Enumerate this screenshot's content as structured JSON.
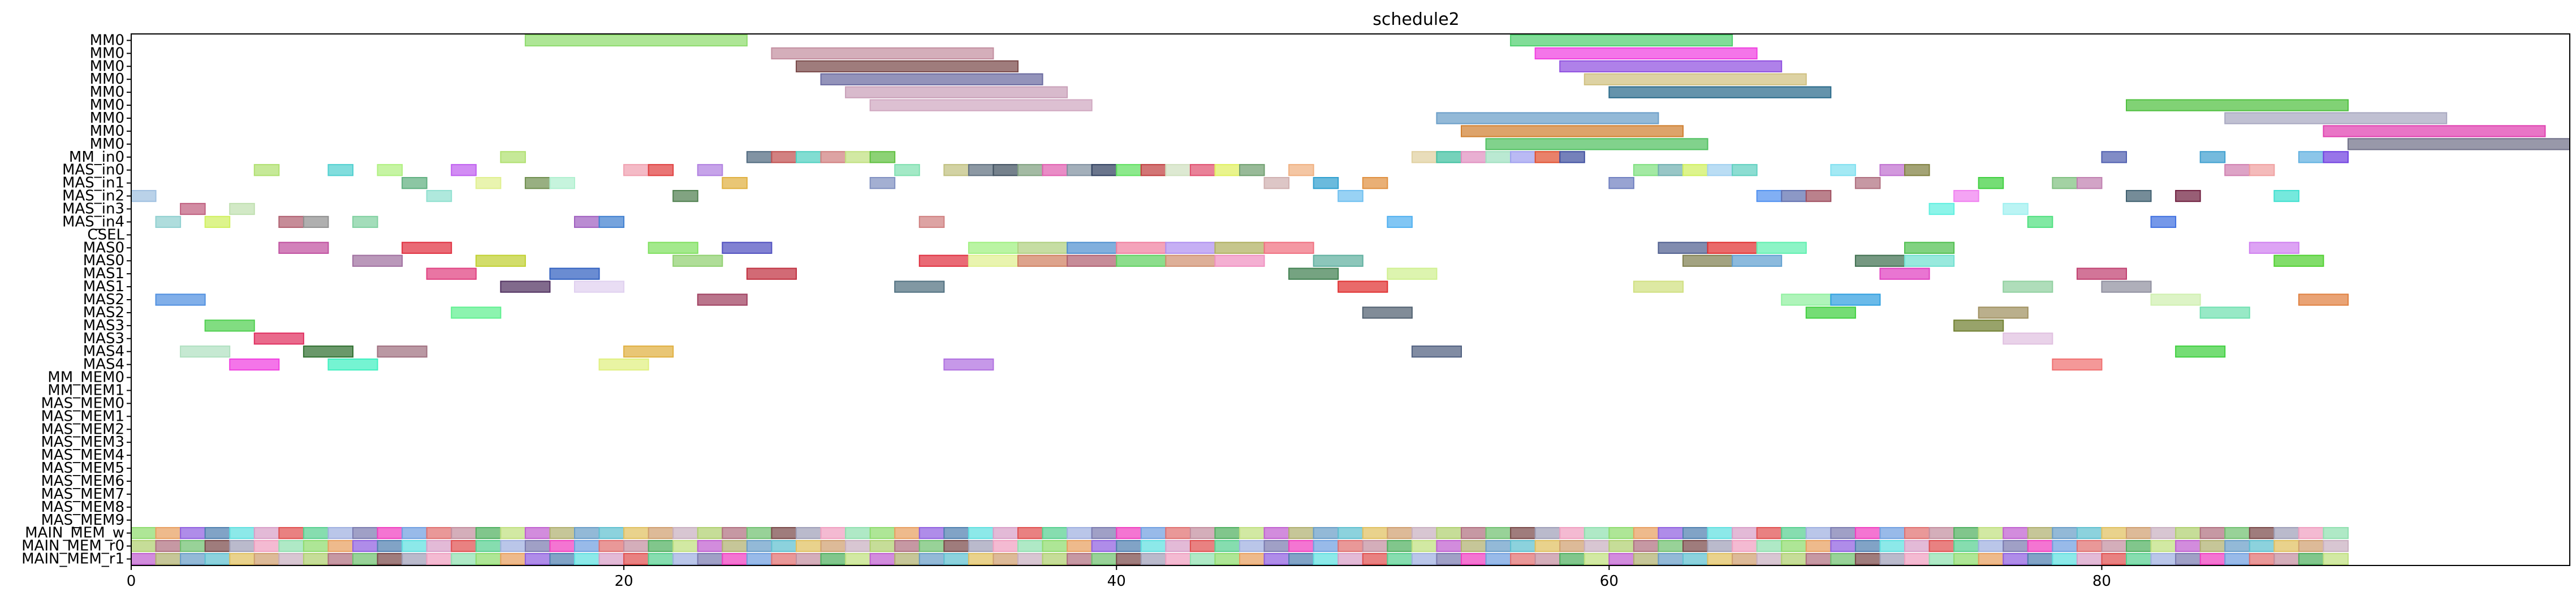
{
  "chart_data": {
    "type": "gantt",
    "title": "schedule2",
    "xlim": [
      0,
      99
    ],
    "x_ticks": [
      0,
      20,
      40,
      60,
      80
    ],
    "grid": false,
    "rows": [
      "MM0",
      "MM0",
      "MM0",
      "MM0",
      "MM0",
      "MM0",
      "MM0",
      "MM0",
      "MM0",
      "MM_in0",
      "MAS_in0",
      "MAS_in1",
      "MAS_in2",
      "MAS_in3",
      "MAS_in4",
      "CSEL",
      "MAS0",
      "MAS0",
      "MAS1",
      "MAS1",
      "MAS2",
      "MAS2",
      "MAS3",
      "MAS3",
      "MAS4",
      "MAS4",
      "MM_MEM0",
      "MM_MEM1",
      "MAS_MEM0",
      "MAS_MEM1",
      "MAS_MEM2",
      "MAS_MEM3",
      "MAS_MEM4",
      "MAS_MEM5",
      "MAS_MEM6",
      "MAS_MEM7",
      "MAS_MEM8",
      "MAS_MEM9",
      "MAIN_MEM_w",
      "MAIN_MEM_r0",
      "MAIN_MEM_r1"
    ],
    "palette": [
      "#8fdc6e",
      "#c38fa0",
      "#7a4a4a",
      "#7b7bb0",
      "#c9b0c0",
      "#d8a0c8",
      "#6a9ec8",
      "#e8a060",
      "#50b060",
      "#a0a0b8",
      "#f040c0",
      "#b0d070",
      "#e05050",
      "#60c0d0",
      "#9060e0",
      "#c0e080",
      "#f0a0c0",
      "#70a0e0",
      "#b07080",
      "#58d090",
      "#e0c060",
      "#5080b0",
      "#c060d0",
      "#90e0b0",
      "#e07070",
      "#70c070",
      "#a0b0e0",
      "#d0a070",
      "#60e0e0",
      "#b0b070"
    ],
    "bars": [
      {
        "row": 0,
        "start": 16,
        "end": 25,
        "color": "#8fdc6e"
      },
      {
        "row": 0,
        "start": 56,
        "end": 65,
        "color": "#50d070"
      },
      {
        "row": 1,
        "start": 26,
        "end": 35,
        "color": "#c38fa0"
      },
      {
        "row": 1,
        "start": 57,
        "end": 66,
        "color": "#f040e0"
      },
      {
        "row": 2,
        "start": 27,
        "end": 36,
        "color": "#7a4a4a"
      },
      {
        "row": 2,
        "start": 58,
        "end": 67,
        "color": "#9050e0"
      },
      {
        "row": 3,
        "start": 28,
        "end": 37,
        "color": "#6a6aa0"
      },
      {
        "row": 3,
        "start": 59,
        "end": 68,
        "color": "#d0c080"
      },
      {
        "row": 4,
        "start": 29,
        "end": 38,
        "color": "#c9a0b8"
      },
      {
        "row": 4,
        "start": 60,
        "end": 69,
        "color": "#2a6a8a"
      },
      {
        "row": 5,
        "start": 30,
        "end": 39,
        "color": "#d0a8c0"
      },
      {
        "row": 5,
        "start": 81,
        "end": 90,
        "color": "#50c040"
      },
      {
        "row": 6,
        "start": 53,
        "end": 62,
        "color": "#6a9ec8"
      },
      {
        "row": 6,
        "start": 85,
        "end": 94,
        "color": "#a8a8c0"
      },
      {
        "row": 7,
        "start": 54,
        "end": 63,
        "color": "#d08030"
      },
      {
        "row": 7,
        "start": 89,
        "end": 98,
        "color": "#e040b0"
      },
      {
        "row": 8,
        "start": 55,
        "end": 64,
        "color": "#50c060"
      },
      {
        "row": 8,
        "start": 90,
        "end": 99,
        "color": "#707088"
      },
      {
        "row": 9,
        "start": 15,
        "end": 16,
        "color": "#b0e070"
      },
      {
        "row": 9,
        "start": 25,
        "end": 26,
        "color": "#506a80"
      },
      {
        "row": 9,
        "start": 26,
        "end": 27,
        "color": "#c05050"
      },
      {
        "row": 9,
        "start": 27,
        "end": 28,
        "color": "#50d0c0"
      },
      {
        "row": 9,
        "start": 28,
        "end": 29,
        "color": "#d08080"
      },
      {
        "row": 9,
        "start": 29,
        "end": 30,
        "color": "#c0e080"
      },
      {
        "row": 9,
        "start": 30,
        "end": 31,
        "color": "#60c040"
      },
      {
        "row": 9,
        "start": 52,
        "end": 53,
        "color": "#e0d0a0"
      },
      {
        "row": 9,
        "start": 53,
        "end": 54,
        "color": "#40c0a0"
      },
      {
        "row": 9,
        "start": 54,
        "end": 55,
        "color": "#e090c0"
      },
      {
        "row": 9,
        "start": 55,
        "end": 56,
        "color": "#a0e0c0"
      },
      {
        "row": 9,
        "start": 56,
        "end": 57,
        "color": "#a0a0f0"
      },
      {
        "row": 9,
        "start": 57,
        "end": 58,
        "color": "#e05030"
      },
      {
        "row": 9,
        "start": 58,
        "end": 59,
        "color": "#4050a0"
      },
      {
        "row": 9,
        "start": 80,
        "end": 81,
        "color": "#5060b0"
      },
      {
        "row": 9,
        "start": 84,
        "end": 85,
        "color": "#40a0d0"
      },
      {
        "row": 9,
        "start": 88,
        "end": 89,
        "color": "#60b0e0"
      },
      {
        "row": 9,
        "start": 89,
        "end": 90,
        "color": "#7040e0"
      },
      {
        "row": 10,
        "start": 5,
        "end": 6,
        "color": "#b0e070"
      },
      {
        "row": 10,
        "start": 8,
        "end": 9,
        "color": "#50d0d0"
      },
      {
        "row": 10,
        "start": 10,
        "end": 11,
        "color": "#b0f080"
      },
      {
        "row": 10,
        "start": 13,
        "end": 14,
        "color": "#c060f0"
      },
      {
        "row": 10,
        "start": 20,
        "end": 21,
        "color": "#f0a0b0"
      },
      {
        "row": 10,
        "start": 21,
        "end": 22,
        "color": "#e04040"
      },
      {
        "row": 10,
        "start": 23,
        "end": 24,
        "color": "#b080e0"
      },
      {
        "row": 10,
        "start": 31,
        "end": 32,
        "color": "#80e0b0"
      },
      {
        "row": 10,
        "start": 33,
        "end": 34,
        "color": "#c0c080"
      },
      {
        "row": 10,
        "start": 34,
        "end": 35,
        "color": "#607080"
      },
      {
        "row": 10,
        "start": 35,
        "end": 36,
        "color": "#405060"
      },
      {
        "row": 10,
        "start": 36,
        "end": 37,
        "color": "#80a080"
      },
      {
        "row": 10,
        "start": 37,
        "end": 38,
        "color": "#e060b0"
      },
      {
        "row": 10,
        "start": 38,
        "end": 39,
        "color": "#8090a0"
      },
      {
        "row": 10,
        "start": 39,
        "end": 40,
        "color": "#304060"
      },
      {
        "row": 10,
        "start": 40,
        "end": 41,
        "color": "#60e060"
      },
      {
        "row": 10,
        "start": 41,
        "end": 42,
        "color": "#c04040"
      },
      {
        "row": 10,
        "start": 42,
        "end": 43,
        "color": "#d0e0c0"
      },
      {
        "row": 10,
        "start": 43,
        "end": 44,
        "color": "#e05070"
      },
      {
        "row": 10,
        "start": 44,
        "end": 45,
        "color": "#e0f060"
      },
      {
        "row": 10,
        "start": 45,
        "end": 46,
        "color": "#70a070"
      },
      {
        "row": 10,
        "start": 47,
        "end": 48,
        "color": "#f0b080"
      },
      {
        "row": 10,
        "start": 61,
        "end": 62,
        "color": "#80e080"
      },
      {
        "row": 10,
        "start": 62,
        "end": 63,
        "color": "#70b0b0"
      },
      {
        "row": 10,
        "start": 63,
        "end": 64,
        "color": "#d0f060"
      },
      {
        "row": 10,
        "start": 64,
        "end": 65,
        "color": "#a0d0f0"
      },
      {
        "row": 10,
        "start": 65,
        "end": 66,
        "color": "#60d0c0"
      },
      {
        "row": 10,
        "start": 69,
        "end": 70,
        "color": "#80e0f0"
      },
      {
        "row": 10,
        "start": 71,
        "end": 72,
        "color": "#c070d0"
      },
      {
        "row": 10,
        "start": 72,
        "end": 73,
        "color": "#808040"
      },
      {
        "row": 10,
        "start": 85,
        "end": 86,
        "color": "#d080b0"
      },
      {
        "row": 10,
        "start": 86,
        "end": 87,
        "color": "#f0a0a0"
      },
      {
        "row": 11,
        "start": 11,
        "end": 12,
        "color": "#60b080"
      },
      {
        "row": 11,
        "start": 14,
        "end": 15,
        "color": "#e0f090"
      },
      {
        "row": 11,
        "start": 16,
        "end": 17,
        "color": "#709050"
      },
      {
        "row": 11,
        "start": 17,
        "end": 18,
        "color": "#b0f0d0"
      },
      {
        "row": 11,
        "start": 24,
        "end": 25,
        "color": "#e0b040"
      },
      {
        "row": 11,
        "start": 30,
        "end": 31,
        "color": "#8090c0"
      },
      {
        "row": 11,
        "start": 46,
        "end": 47,
        "color": "#d0b0b0"
      },
      {
        "row": 11,
        "start": 48,
        "end": 49,
        "color": "#30a0d0"
      },
      {
        "row": 11,
        "start": 50,
        "end": 51,
        "color": "#e09040"
      },
      {
        "row": 11,
        "start": 60,
        "end": 61,
        "color": "#7080c0"
      },
      {
        "row": 11,
        "start": 70,
        "end": 71,
        "color": "#b07080"
      },
      {
        "row": 11,
        "start": 75,
        "end": 76,
        "color": "#40d040"
      },
      {
        "row": 11,
        "start": 78,
        "end": 79,
        "color": "#80c080"
      },
      {
        "row": 11,
        "start": 79,
        "end": 80,
        "color": "#c080b0"
      },
      {
        "row": 12,
        "start": 0,
        "end": 1,
        "color": "#a0c0e0"
      },
      {
        "row": 12,
        "start": 12,
        "end": 13,
        "color": "#90e0d0"
      },
      {
        "row": 12,
        "start": 22,
        "end": 23,
        "color": "#508050"
      },
      {
        "row": 12,
        "start": 49,
        "end": 50,
        "color": "#70c0f0"
      },
      {
        "row": 12,
        "start": 66,
        "end": 67,
        "color": "#5090f0"
      },
      {
        "row": 12,
        "start": 67,
        "end": 68,
        "color": "#6070b0"
      },
      {
        "row": 12,
        "start": 68,
        "end": 69,
        "color": "#a05060"
      },
      {
        "row": 12,
        "start": 74,
        "end": 75,
        "color": "#f080f0"
      },
      {
        "row": 12,
        "start": 81,
        "end": 82,
        "color": "#406070"
      },
      {
        "row": 12,
        "start": 83,
        "end": 84,
        "color": "#702040"
      },
      {
        "row": 12,
        "start": 87,
        "end": 88,
        "color": "#40e0d0"
      },
      {
        "row": 13,
        "start": 2,
        "end": 3,
        "color": "#c06080"
      },
      {
        "row": 13,
        "start": 4,
        "end": 5,
        "color": "#c0e0b0"
      },
      {
        "row": 13,
        "start": 73,
        "end": 74,
        "color": "#60f0e0"
      },
      {
        "row": 13,
        "start": 76,
        "end": 77,
        "color": "#a0f0f0"
      },
      {
        "row": 14,
        "start": 1,
        "end": 2,
        "color": "#90d0d0"
      },
      {
        "row": 14,
        "start": 3,
        "end": 4,
        "color": "#d0f060"
      },
      {
        "row": 14,
        "start": 6,
        "end": 7,
        "color": "#b06070"
      },
      {
        "row": 14,
        "start": 7,
        "end": 8,
        "color": "#909090"
      },
      {
        "row": 14,
        "start": 9,
        "end": 10,
        "color": "#80d0a0"
      },
      {
        "row": 14,
        "start": 18,
        "end": 19,
        "color": "#a060c0"
      },
      {
        "row": 14,
        "start": 19,
        "end": 20,
        "color": "#4080d0"
      },
      {
        "row": 14,
        "start": 32,
        "end": 33,
        "color": "#d08080"
      },
      {
        "row": 14,
        "start": 51,
        "end": 52,
        "color": "#50b0f0"
      },
      {
        "row": 14,
        "start": 77,
        "end": 78,
        "color": "#50e080"
      },
      {
        "row": 14,
        "start": 82,
        "end": 83,
        "color": "#4070e0"
      },
      {
        "row": 16,
        "start": 6,
        "end": 8,
        "color": "#c050a0"
      },
      {
        "row": 16,
        "start": 11,
        "end": 13,
        "color": "#e03040"
      },
      {
        "row": 16,
        "start": 21,
        "end": 23,
        "color": "#80e060"
      },
      {
        "row": 16,
        "start": 24,
        "end": 26,
        "color": "#5050c0"
      },
      {
        "row": 16,
        "start": 34,
        "end": 36,
        "color": "#a0f080"
      },
      {
        "row": 16,
        "start": 36,
        "end": 38,
        "color": "#b0d080"
      },
      {
        "row": 16,
        "start": 38,
        "end": 40,
        "color": "#5090d0"
      },
      {
        "row": 16,
        "start": 40,
        "end": 42,
        "color": "#f080a0"
      },
      {
        "row": 16,
        "start": 42,
        "end": 44,
        "color": "#b090f0"
      },
      {
        "row": 16,
        "start": 44,
        "end": 46,
        "color": "#b0b060"
      },
      {
        "row": 16,
        "start": 46,
        "end": 48,
        "color": "#f07080"
      },
      {
        "row": 16,
        "start": 62,
        "end": 64,
        "color": "#506090"
      },
      {
        "row": 16,
        "start": 64,
        "end": 66,
        "color": "#e03030"
      },
      {
        "row": 16,
        "start": 66,
        "end": 68,
        "color": "#60f0b0"
      },
      {
        "row": 16,
        "start": 72,
        "end": 74,
        "color": "#50c050"
      },
      {
        "row": 16,
        "start": 86,
        "end": 88,
        "color": "#d080f0"
      },
      {
        "row": 17,
        "start": 9,
        "end": 11,
        "color": "#a070a0"
      },
      {
        "row": 17,
        "start": 14,
        "end": 16,
        "color": "#c0d030"
      },
      {
        "row": 17,
        "start": 22,
        "end": 24,
        "color": "#90d070"
      },
      {
        "row": 17,
        "start": 32,
        "end": 34,
        "color": "#e03040"
      },
      {
        "row": 17,
        "start": 34,
        "end": 36,
        "color": "#e0f090"
      },
      {
        "row": 17,
        "start": 36,
        "end": 38,
        "color": "#d08060"
      },
      {
        "row": 17,
        "start": 38,
        "end": 40,
        "color": "#b06070"
      },
      {
        "row": 17,
        "start": 40,
        "end": 42,
        "color": "#60d060"
      },
      {
        "row": 17,
        "start": 42,
        "end": 44,
        "color": "#d09070"
      },
      {
        "row": 17,
        "start": 44,
        "end": 46,
        "color": "#f090c0"
      },
      {
        "row": 17,
        "start": 48,
        "end": 50,
        "color": "#60b0a0"
      },
      {
        "row": 17,
        "start": 63,
        "end": 65,
        "color": "#808050"
      },
      {
        "row": 17,
        "start": 65,
        "end": 67,
        "color": "#60a0d0"
      },
      {
        "row": 17,
        "start": 70,
        "end": 72,
        "color": "#407050"
      },
      {
        "row": 17,
        "start": 72,
        "end": 74,
        "color": "#70e0d0"
      },
      {
        "row": 17,
        "start": 87,
        "end": 89,
        "color": "#50d030"
      },
      {
        "row": 18,
        "start": 12,
        "end": 14,
        "color": "#e04080"
      },
      {
        "row": 18,
        "start": 17,
        "end": 19,
        "color": "#3060c0"
      },
      {
        "row": 18,
        "start": 25,
        "end": 27,
        "color": "#c03040"
      },
      {
        "row": 18,
        "start": 47,
        "end": 49,
        "color": "#408050"
      },
      {
        "row": 18,
        "start": 51,
        "end": 53,
        "color": "#d0f090"
      },
      {
        "row": 18,
        "start": 71,
        "end": 73,
        "color": "#e040c0"
      },
      {
        "row": 18,
        "start": 79,
        "end": 81,
        "color": "#c04070"
      },
      {
        "row": 19,
        "start": 15,
        "end": 17,
        "color": "#503060"
      },
      {
        "row": 19,
        "start": 18,
        "end": 20,
        "color": "#e0d0f0"
      },
      {
        "row": 19,
        "start": 31,
        "end": 33,
        "color": "#507080"
      },
      {
        "row": 19,
        "start": 49,
        "end": 51,
        "color": "#e03030"
      },
      {
        "row": 19,
        "start": 61,
        "end": 63,
        "color": "#d0e080"
      },
      {
        "row": 19,
        "start": 76,
        "end": 78,
        "color": "#90d0a0"
      },
      {
        "row": 19,
        "start": 80,
        "end": 82,
        "color": "#9090a0"
      },
      {
        "row": 20,
        "start": 1,
        "end": 3,
        "color": "#5090e0"
      },
      {
        "row": 20,
        "start": 23,
        "end": 25,
        "color": "#a04060"
      },
      {
        "row": 20,
        "start": 67,
        "end": 69,
        "color": "#90f0a0"
      },
      {
        "row": 20,
        "start": 69,
        "end": 71,
        "color": "#30a0e0"
      },
      {
        "row": 20,
        "start": 82,
        "end": 84,
        "color": "#d0f0b0"
      },
      {
        "row": 20,
        "start": 88,
        "end": 90,
        "color": "#e08040"
      },
      {
        "row": 21,
        "start": 13,
        "end": 15,
        "color": "#60f090"
      },
      {
        "row": 21,
        "start": 50,
        "end": 52,
        "color": "#506070"
      },
      {
        "row": 21,
        "start": 68,
        "end": 70,
        "color": "#40d040"
      },
      {
        "row": 21,
        "start": 75,
        "end": 77,
        "color": "#a09060"
      },
      {
        "row": 21,
        "start": 84,
        "end": 86,
        "color": "#70e0b0"
      },
      {
        "row": 22,
        "start": 3,
        "end": 5,
        "color": "#50d050"
      },
      {
        "row": 22,
        "start": 74,
        "end": 76,
        "color": "#708030"
      },
      {
        "row": 23,
        "start": 5,
        "end": 7,
        "color": "#e03060"
      },
      {
        "row": 23,
        "start": 76,
        "end": 78,
        "color": "#e0c0e0"
      },
      {
        "row": 24,
        "start": 2,
        "end": 4,
        "color": "#b0e0c0"
      },
      {
        "row": 24,
        "start": 7,
        "end": 9,
        "color": "#307030"
      },
      {
        "row": 24,
        "start": 10,
        "end": 12,
        "color": "#a07080"
      },
      {
        "row": 24,
        "start": 20,
        "end": 22,
        "color": "#e0b040"
      },
      {
        "row": 24,
        "start": 52,
        "end": 54,
        "color": "#506080"
      },
      {
        "row": 24,
        "start": 83,
        "end": 85,
        "color": "#40d040"
      },
      {
        "row": 25,
        "start": 4,
        "end": 6,
        "color": "#f040e0"
      },
      {
        "row": 25,
        "start": 8,
        "end": 10,
        "color": "#40f0c0"
      },
      {
        "row": 25,
        "start": 19,
        "end": 21,
        "color": "#e0f080"
      },
      {
        "row": 25,
        "start": 33,
        "end": 35,
        "color": "#b070e0"
      },
      {
        "row": 25,
        "start": 78,
        "end": 80,
        "color": "#f07070"
      }
    ],
    "memory_row_indices": [
      38,
      39,
      40
    ],
    "memory_slot_end": 90
  }
}
